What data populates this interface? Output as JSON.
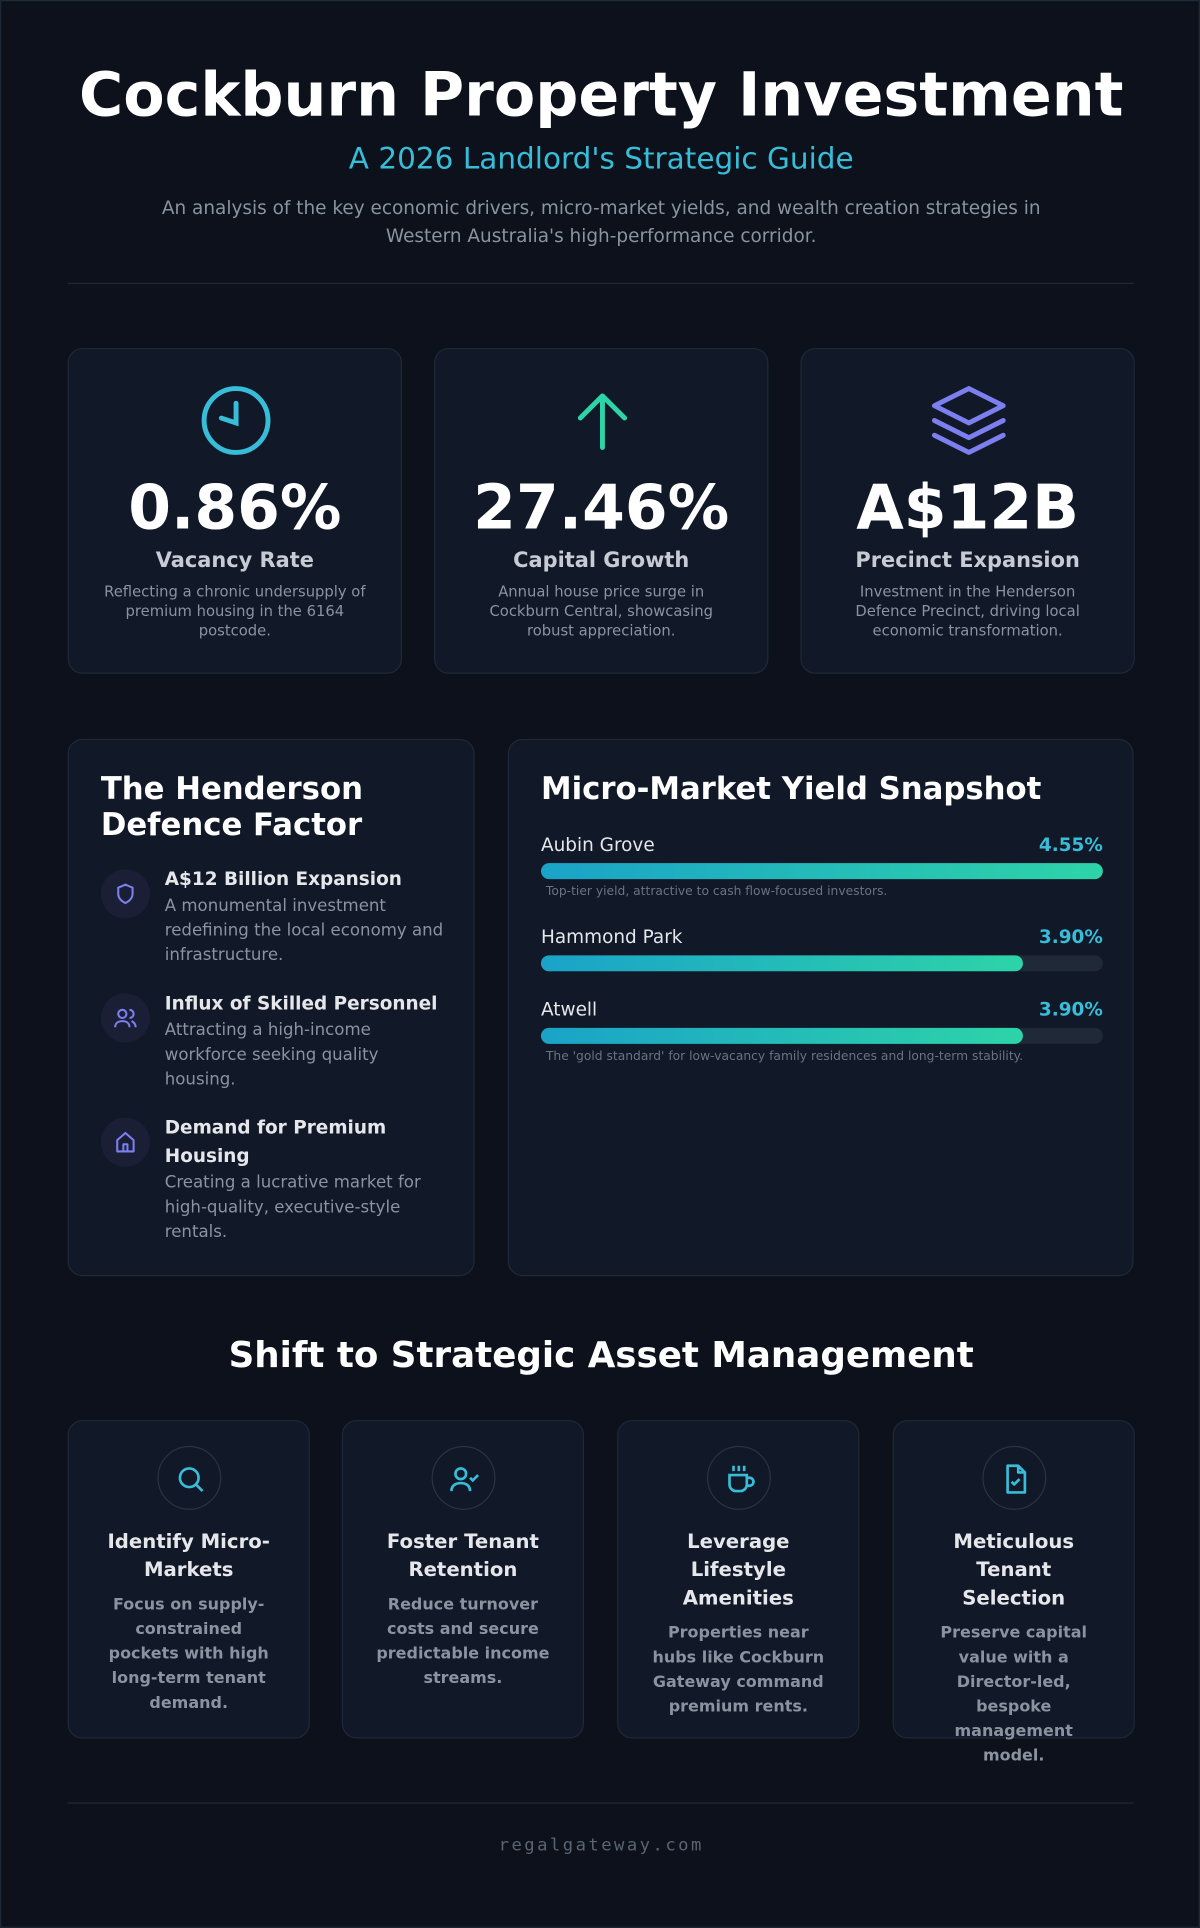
{
  "header": {
    "title": "Cockburn Property Investment",
    "subtitle": "A 2026 Landlord's Strategic Guide",
    "description": "An analysis of the key economic drivers, micro-market yields, and wealth creation strategies in Western Australia's high-performance corridor."
  },
  "stats": [
    {
      "value": "0.86%",
      "label": "Vacancy Rate",
      "description": "Reflecting a chronic undersupply of premium housing in the 6164 postcode."
    },
    {
      "value": "27.46%",
      "label": "Capital Growth",
      "description": "Annual house price surge in Cockburn Central, showcasing robust appreciation."
    },
    {
      "value": "A$12B",
      "label": "Precinct Expansion",
      "description": "Investment in the Henderson Defence Precinct, driving local economic transformation."
    }
  ],
  "henderson": {
    "title": "The Henderson Defence Factor",
    "items": [
      {
        "title": "A$12 Billion Expansion",
        "text": "A monumental investment redefining the local economy and infrastructure."
      },
      {
        "title": "Influx of Skilled Personnel",
        "text": "Attracting a high-income workforce seeking quality housing."
      },
      {
        "title": "Demand for Premium Housing",
        "text": "Creating a lucrative market for high-quality, executive-style rentals."
      }
    ]
  },
  "yields": {
    "title": "Micro-Market Yield Snapshot",
    "categories": [
      "Aubin Grove",
      "Hammond Park",
      "Atwell"
    ],
    "values": [
      4.55,
      3.9,
      3.9
    ],
    "value_labels": [
      "4.55%",
      "3.90%",
      "3.90%"
    ],
    "notes": [
      "Top-tier yield, attractive to cash flow-focused investors.",
      null,
      "The 'gold standard' for low-vacancy family residences and long-term stability."
    ]
  },
  "strategy": {
    "title": "Shift to Strategic Asset Management",
    "cards": [
      {
        "title": "Identify Micro-Markets",
        "text": "Focus on supply-constrained pockets with high long-term tenant demand."
      },
      {
        "title": "Foster Tenant Retention",
        "text": "Reduce turnover costs and secure predictable income streams."
      },
      {
        "title": "Leverage Lifestyle Amenities",
        "text": "Properties near hubs like Cockburn Gateway command premium rents."
      },
      {
        "title": "Meticulous Tenant Selection",
        "text": "Preserve capital value with a Director-led, bespoke management model."
      }
    ]
  },
  "footer": {
    "text": "regalgateway.com"
  }
}
